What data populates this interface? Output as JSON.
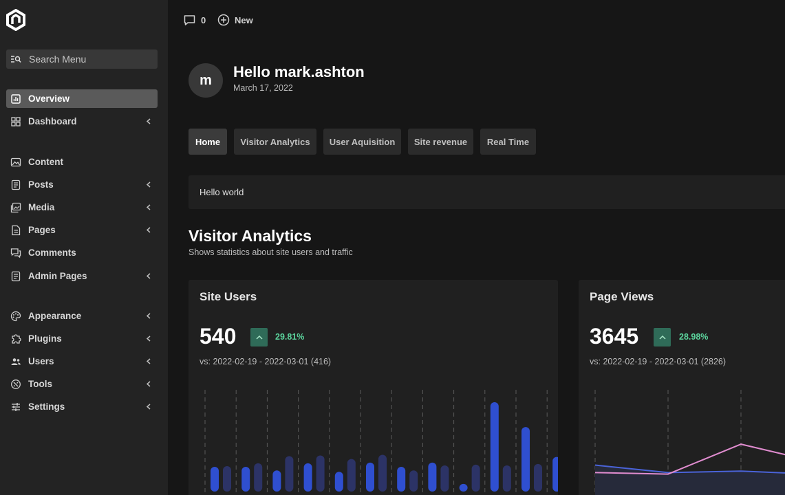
{
  "sidebar": {
    "search_label": "Search Menu",
    "items": [
      {
        "label": "Overview",
        "icon": "chart-icon",
        "active": true,
        "chevron": false
      },
      {
        "label": "Dashboard",
        "icon": "grid-icon",
        "active": false,
        "chevron": true
      },
      {
        "label": "Content",
        "icon": "image-icon",
        "active": false,
        "chevron": false
      },
      {
        "label": "Posts",
        "icon": "document-icon",
        "active": false,
        "chevron": true
      },
      {
        "label": "Media",
        "icon": "media-icon",
        "active": false,
        "chevron": true
      },
      {
        "label": "Pages",
        "icon": "page-icon",
        "active": false,
        "chevron": true
      },
      {
        "label": "Comments",
        "icon": "comments-icon",
        "active": false,
        "chevron": false
      },
      {
        "label": "Admin Pages",
        "icon": "document-icon",
        "active": false,
        "chevron": true
      },
      {
        "label": "Appearance",
        "icon": "palette-icon",
        "active": false,
        "chevron": true
      },
      {
        "label": "Plugins",
        "icon": "puzzle-icon",
        "active": false,
        "chevron": true
      },
      {
        "label": "Users",
        "icon": "users-icon",
        "active": false,
        "chevron": true
      },
      {
        "label": "Tools",
        "icon": "tools-icon",
        "active": false,
        "chevron": true
      },
      {
        "label": "Settings",
        "icon": "sliders-icon",
        "active": false,
        "chevron": true
      }
    ]
  },
  "topbar": {
    "comments_count": "0",
    "new_label": "New"
  },
  "user": {
    "avatar_letter": "m",
    "greeting": "Hello mark.ashton",
    "date": "March 17, 2022"
  },
  "tabs": [
    {
      "label": "Home",
      "active": true
    },
    {
      "label": "Visitor Analytics",
      "active": false
    },
    {
      "label": "User Aquisition",
      "active": false
    },
    {
      "label": "Site revenue",
      "active": false
    },
    {
      "label": "Real Time",
      "active": false
    }
  ],
  "hello_box": "Hello world",
  "section": {
    "title": "Visitor Analytics",
    "subtitle": "Shows statistics about site users and traffic"
  },
  "cards": {
    "site_users": {
      "title": "Site Users",
      "value": "540",
      "trend": "29.81%",
      "vs": "vs: 2022-02-19 - 2022-03-01 (416)"
    },
    "page_views": {
      "title": "Page Views",
      "value": "3645",
      "trend": "28.98%",
      "vs": "vs: 2022-02-19 - 2022-03-01 (2826)"
    }
  },
  "colors": {
    "bar_current": "#2f4fd0",
    "bar_previous": "#2c3366",
    "line_current": "#4a63d8",
    "line_previous": "#e08ccf",
    "trend_bg": "#2f6b58",
    "trend_text": "#5bd39c"
  },
  "chart_data": [
    {
      "type": "bar",
      "series": [
        {
          "values": [
            29,
            29,
            24,
            34,
            22,
            35,
            29,
            35,
            5,
            120,
            85,
            43
          ]
        },
        {
          "values": [
            30,
            34,
            44,
            45,
            40,
            46,
            24,
            31,
            32,
            31,
            33,
            37
          ]
        }
      ],
      "ylim": [
        0,
        150
      ]
    },
    {
      "type": "line",
      "series": [
        {
          "values": [
            40,
            30,
            32,
            28
          ]
        },
        {
          "values": [
            30,
            28,
            68,
            45
          ]
        }
      ],
      "ylim": [
        0,
        150
      ]
    }
  ]
}
